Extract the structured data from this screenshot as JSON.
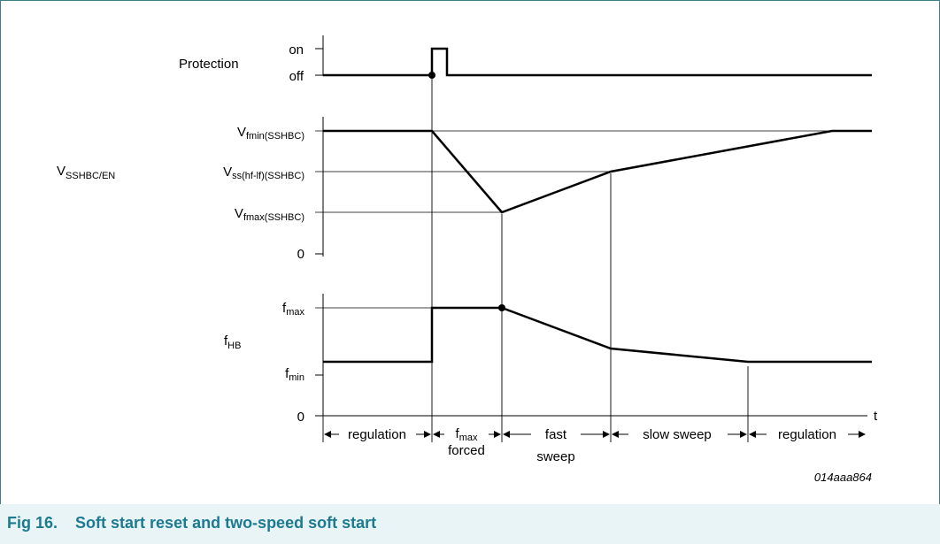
{
  "figure": {
    "caption_number": "Fig 16.",
    "caption_title": "Soft start reset and two-speed soft start",
    "ref_code": "014aaa864"
  },
  "panels": {
    "protection": {
      "name": "Protection",
      "levels": [
        "on",
        "off"
      ]
    },
    "vsshbc": {
      "name_main": "V",
      "name_sub": "SSHBC/EN",
      "levels": [
        {
          "main": "V",
          "sub": "fmin(SSHBC)"
        },
        {
          "main": "V",
          "sub": "ss(hf-lf)(SSHBC)"
        },
        {
          "main": "V",
          "sub": "fmax(SSHBC)"
        },
        {
          "main": "0",
          "sub": ""
        }
      ]
    },
    "fhb": {
      "name_main": "f",
      "name_sub": "HB",
      "levels": [
        {
          "main": "f",
          "sub": "max"
        },
        {
          "main": "f",
          "sub": "min"
        },
        {
          "main": "0",
          "sub": ""
        }
      ],
      "time_axis_label": "t"
    }
  },
  "phases": [
    {
      "line1": "regulation"
    },
    {
      "line1_main": "f",
      "line1_sub": "max",
      "line2": "forced"
    },
    {
      "line1": "fast",
      "line2": "sweep"
    },
    {
      "line1": "slow sweep"
    },
    {
      "line1": "regulation"
    }
  ]
}
